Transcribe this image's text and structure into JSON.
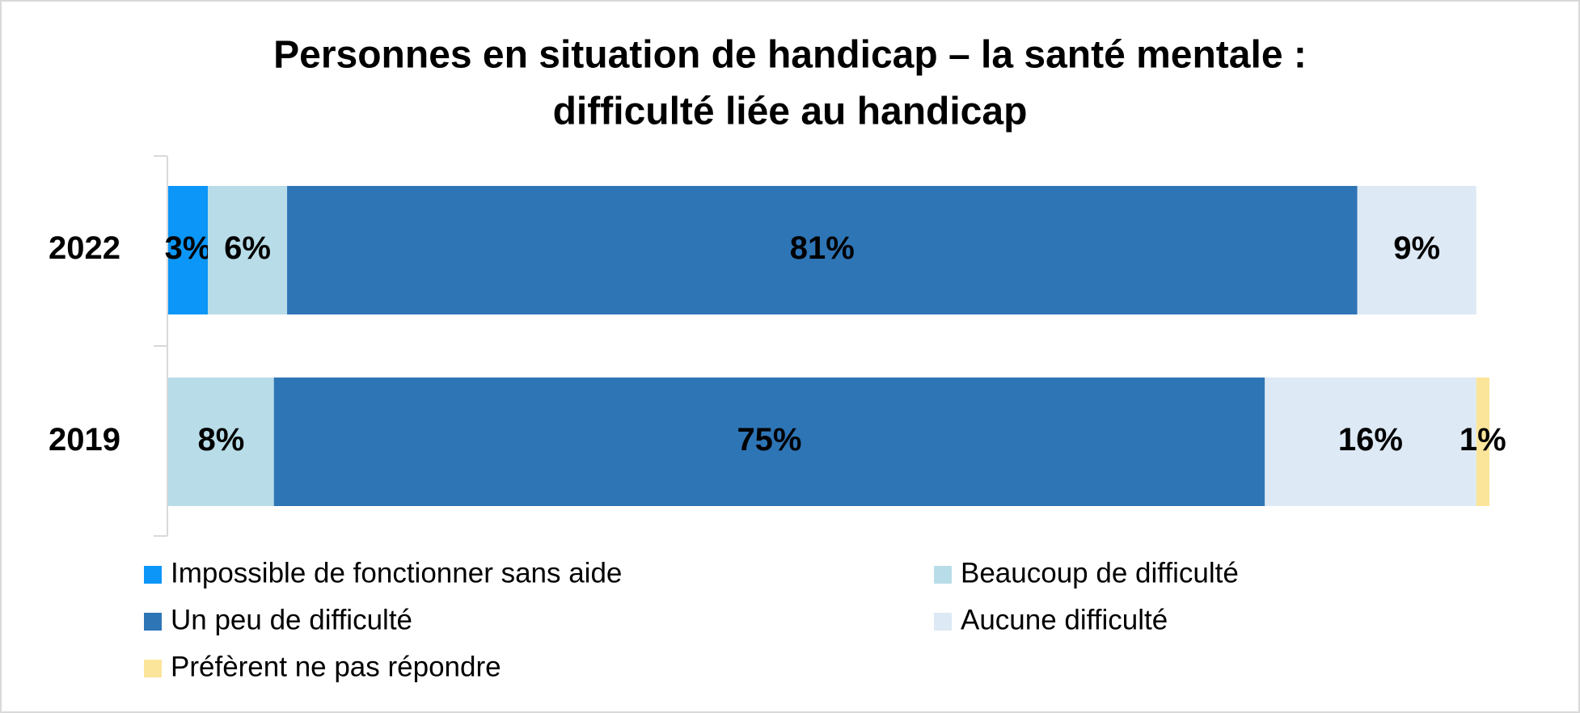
{
  "chart_data": {
    "type": "stacked-barh",
    "title": [
      "Personnes en situation de handicap – la santé mentale :",
      "difficulté liée au handicap"
    ],
    "categories": [
      "2022",
      "2019"
    ],
    "xlim": [
      0,
      100
    ],
    "series": [
      {
        "name": "Impossible de fonctionner sans aide",
        "color": "#0c96f7",
        "values": [
          3,
          null
        ],
        "value_labels": [
          "3%",
          null
        ]
      },
      {
        "name": "Beaucoup de difficulté",
        "color": "#b8dde8",
        "values": [
          6,
          8
        ],
        "value_labels": [
          "6%",
          "8%"
        ]
      },
      {
        "name": "Un peu de difficulté",
        "color": "#2e75b6",
        "values": [
          81,
          75
        ],
        "value_labels": [
          "81%",
          "75%"
        ]
      },
      {
        "name": "Aucune difficulté",
        "color": "#dde9f5",
        "values": [
          9,
          16
        ],
        "value_labels": [
          "9%",
          "16%"
        ]
      },
      {
        "name": "Préfèrent ne pas répondre",
        "color": "#fbe59b",
        "values": [
          null,
          1
        ],
        "value_labels": [
          null,
          "1%"
        ]
      }
    ]
  }
}
